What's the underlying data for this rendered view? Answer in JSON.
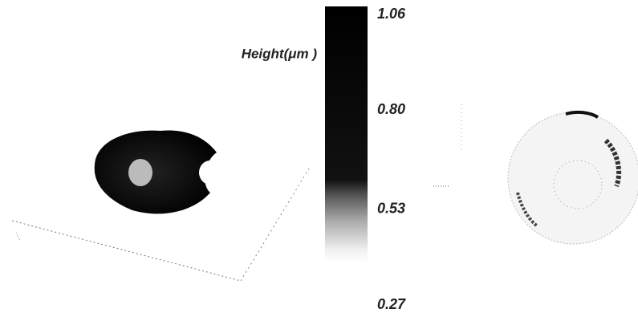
{
  "chart_data": {
    "type": "colorbar",
    "colorbar_label": "Height(μm )",
    "ylim": [
      0.27,
      1.06
    ],
    "yticks": [
      1.06,
      {
        "value": 0.8,
        "label": "0.80"
      },
      0.53,
      0.27
    ]
  }
}
